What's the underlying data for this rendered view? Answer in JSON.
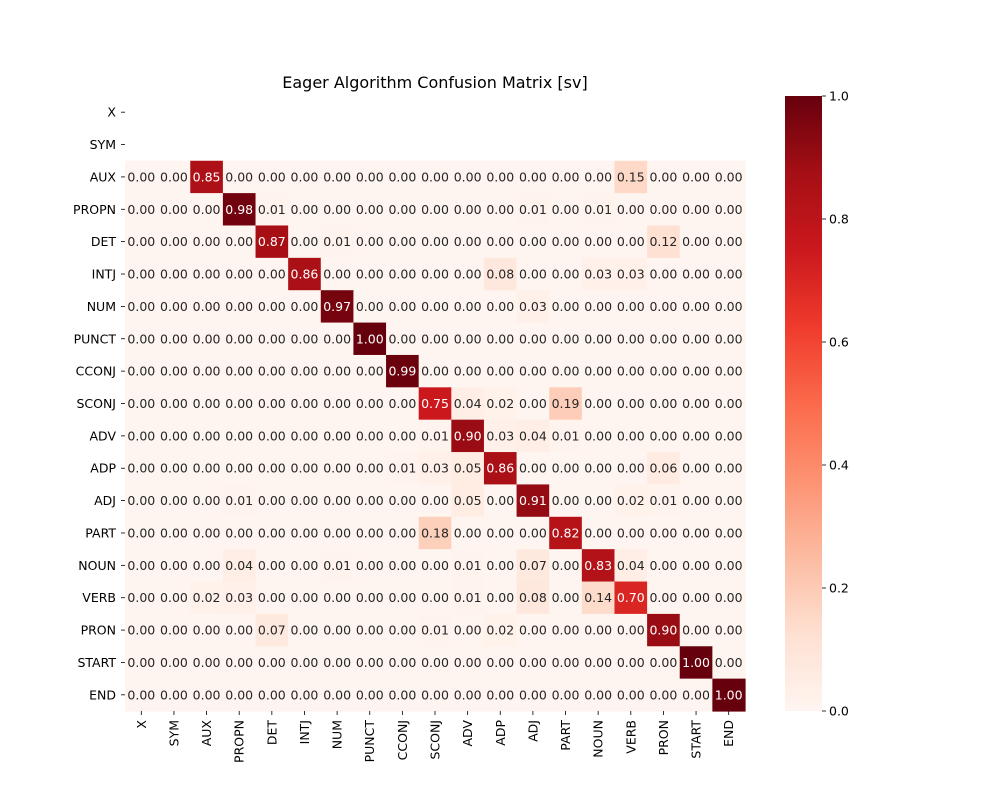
{
  "chart_data": {
    "type": "heatmap",
    "title": "Eager Algorithm Confusion Matrix [sv]",
    "xlabel": "",
    "ylabel": "",
    "row_labels": [
      "X",
      "SYM",
      "AUX",
      "PROPN",
      "DET",
      "INTJ",
      "NUM",
      "PUNCT",
      "CCONJ",
      "SCONJ",
      "ADV",
      "ADP",
      "ADJ",
      "PART",
      "NOUN",
      "VERB",
      "PRON",
      "START",
      "END"
    ],
    "col_labels": [
      "X",
      "SYM",
      "AUX",
      "PROPN",
      "DET",
      "INTJ",
      "NUM",
      "PUNCT",
      "CCONJ",
      "SCONJ",
      "ADV",
      "ADP",
      "ADJ",
      "PART",
      "NOUN",
      "VERB",
      "PRON",
      "START",
      "END"
    ],
    "values": [
      [
        null,
        null,
        null,
        null,
        null,
        null,
        null,
        null,
        null,
        null,
        null,
        null,
        null,
        null,
        null,
        null,
        null,
        null,
        null
      ],
      [
        null,
        null,
        null,
        null,
        null,
        null,
        null,
        null,
        null,
        null,
        null,
        null,
        null,
        null,
        null,
        null,
        null,
        null,
        null
      ],
      [
        0.0,
        0.0,
        0.85,
        0.0,
        0.0,
        0.0,
        0.0,
        0.0,
        0.0,
        0.0,
        0.0,
        0.0,
        0.0,
        0.0,
        0.0,
        0.15,
        0.0,
        0.0,
        0.0
      ],
      [
        0.0,
        0.0,
        0.0,
        0.98,
        0.01,
        0.0,
        0.0,
        0.0,
        0.0,
        0.0,
        0.0,
        0.0,
        0.01,
        0.0,
        0.01,
        0.0,
        0.0,
        0.0,
        0.0
      ],
      [
        0.0,
        0.0,
        0.0,
        0.0,
        0.87,
        0.0,
        0.01,
        0.0,
        0.0,
        0.0,
        0.0,
        0.0,
        0.0,
        0.0,
        0.0,
        0.0,
        0.12,
        0.0,
        0.0
      ],
      [
        0.0,
        0.0,
        0.0,
        0.0,
        0.0,
        0.86,
        0.0,
        0.0,
        0.0,
        0.0,
        0.0,
        0.08,
        0.0,
        0.0,
        0.03,
        0.03,
        0.0,
        0.0,
        0.0
      ],
      [
        0.0,
        0.0,
        0.0,
        0.0,
        0.0,
        0.0,
        0.97,
        0.0,
        0.0,
        0.0,
        0.0,
        0.0,
        0.03,
        0.0,
        0.0,
        0.0,
        0.0,
        0.0,
        0.0
      ],
      [
        0.0,
        0.0,
        0.0,
        0.0,
        0.0,
        0.0,
        0.0,
        1.0,
        0.0,
        0.0,
        0.0,
        0.0,
        0.0,
        0.0,
        0.0,
        0.0,
        0.0,
        0.0,
        0.0
      ],
      [
        0.0,
        0.0,
        0.0,
        0.0,
        0.0,
        0.0,
        0.0,
        0.0,
        0.99,
        0.0,
        0.0,
        0.0,
        0.0,
        0.0,
        0.0,
        0.0,
        0.0,
        0.0,
        0.0
      ],
      [
        0.0,
        0.0,
        0.0,
        0.0,
        0.0,
        0.0,
        0.0,
        0.0,
        0.0,
        0.75,
        0.04,
        0.02,
        0.0,
        0.19,
        0.0,
        0.0,
        0.0,
        0.0,
        0.0
      ],
      [
        0.0,
        0.0,
        0.0,
        0.0,
        0.0,
        0.0,
        0.0,
        0.0,
        0.0,
        0.01,
        0.9,
        0.03,
        0.04,
        0.01,
        0.0,
        0.0,
        0.0,
        0.0,
        0.0
      ],
      [
        0.0,
        0.0,
        0.0,
        0.0,
        0.0,
        0.0,
        0.0,
        0.0,
        0.01,
        0.03,
        0.05,
        0.86,
        0.0,
        0.0,
        0.0,
        0.0,
        0.06,
        0.0,
        0.0
      ],
      [
        0.0,
        0.0,
        0.0,
        0.01,
        0.0,
        0.0,
        0.0,
        0.0,
        0.0,
        0.0,
        0.05,
        0.0,
        0.91,
        0.0,
        0.0,
        0.02,
        0.01,
        0.0,
        0.0
      ],
      [
        0.0,
        0.0,
        0.0,
        0.0,
        0.0,
        0.0,
        0.0,
        0.0,
        0.0,
        0.18,
        0.0,
        0.0,
        0.0,
        0.82,
        0.0,
        0.0,
        0.0,
        0.0,
        0.0
      ],
      [
        0.0,
        0.0,
        0.0,
        0.04,
        0.0,
        0.0,
        0.01,
        0.0,
        0.0,
        0.0,
        0.01,
        0.0,
        0.07,
        0.0,
        0.83,
        0.04,
        0.0,
        0.0,
        0.0
      ],
      [
        0.0,
        0.0,
        0.02,
        0.03,
        0.0,
        0.0,
        0.0,
        0.0,
        0.0,
        0.0,
        0.01,
        0.0,
        0.08,
        0.0,
        0.14,
        0.7,
        0.0,
        0.0,
        0.0
      ],
      [
        0.0,
        0.0,
        0.0,
        0.0,
        0.07,
        0.0,
        0.0,
        0.0,
        0.0,
        0.01,
        0.0,
        0.02,
        0.0,
        0.0,
        0.0,
        0.0,
        0.9,
        0.0,
        0.0
      ],
      [
        0.0,
        0.0,
        0.0,
        0.0,
        0.0,
        0.0,
        0.0,
        0.0,
        0.0,
        0.0,
        0.0,
        0.0,
        0.0,
        0.0,
        0.0,
        0.0,
        0.0,
        1.0,
        0.0
      ],
      [
        0.0,
        0.0,
        0.0,
        0.0,
        0.0,
        0.0,
        0.0,
        0.0,
        0.0,
        0.0,
        0.0,
        0.0,
        0.0,
        0.0,
        0.0,
        0.0,
        0.0,
        0.0,
        1.0
      ]
    ],
    "value_range": [
      0.0,
      1.0
    ],
    "colormap": "Reds",
    "colorbar_ticks": [
      0.0,
      0.2,
      0.4,
      0.6,
      0.8,
      1.0
    ],
    "annotation_format": "2 decimals",
    "colors": {
      "low": "#fff5f0",
      "high": "#67000d",
      "text_dark": "#262626",
      "text_light": "#ffffff"
    }
  }
}
